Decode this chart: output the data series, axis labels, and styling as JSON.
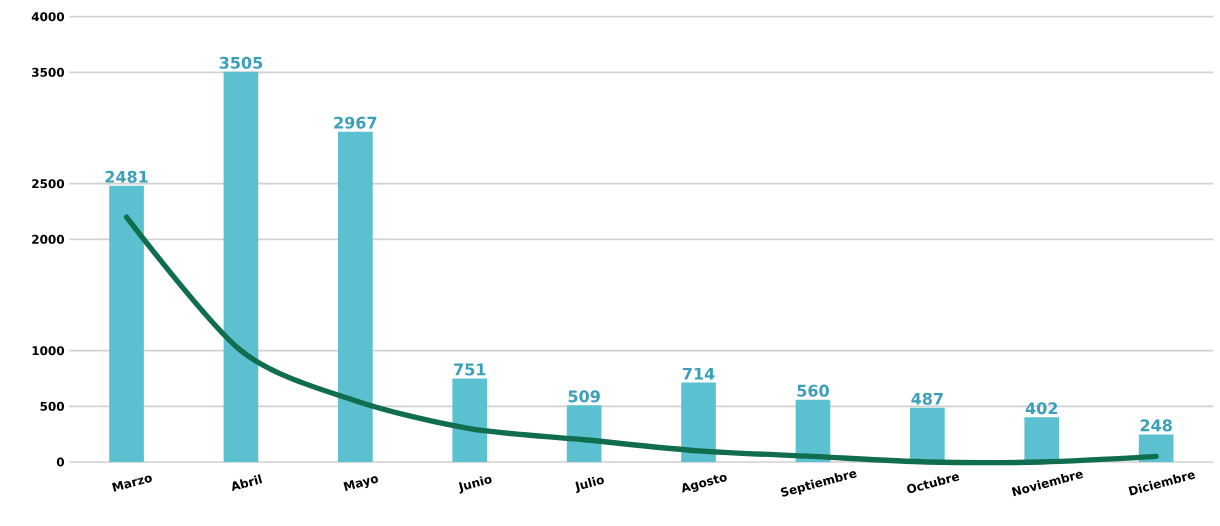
{
  "chart_data": {
    "type": "bar",
    "categories": [
      "Marzo",
      "Abril",
      "Mayo",
      "Junio",
      "Julio",
      "Agosto",
      "Septiembre",
      "Octubre",
      "Noviembre",
      "Diciembre"
    ],
    "series": [
      {
        "color": "#5bc0cf",
        "values": [
          2481,
          3505,
          2967,
          751,
          509,
          714,
          560,
          487,
          402,
          248
        ],
        "value_labels": [
          "2481",
          "3505",
          "2967",
          "751",
          "509",
          "714",
          "560",
          "487",
          "402",
          "248"
        ]
      },
      {
        "type": "line",
        "color": "#106e4e",
        "values": [
          2200,
          1000,
          550,
          300,
          200,
          100,
          50,
          0,
          0,
          50
        ]
      }
    ],
    "ylim": [
      0,
      4000
    ],
    "yticks": [
      0,
      500,
      1000,
      2000,
      2500,
      3500,
      4000
    ],
    "grid": "y"
  }
}
